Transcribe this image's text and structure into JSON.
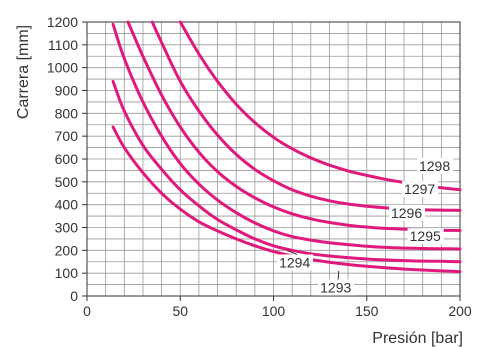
{
  "chart_data": {
    "type": "line",
    "title": "",
    "xlabel": "Presión [bar]",
    "ylabel": "Carrera [mm]",
    "xlim": [
      0,
      200
    ],
    "ylim": [
      0,
      1200
    ],
    "x_ticks": [
      0,
      50,
      100,
      150,
      200
    ],
    "y_ticks": [
      0,
      100,
      200,
      300,
      400,
      500,
      600,
      700,
      800,
      900,
      1000,
      1100,
      1200
    ],
    "grid": true,
    "line_color": "#e0197d",
    "series": [
      {
        "name": "1293",
        "label_at": [
          125,
          15
        ],
        "pointer_to": [
          135,
          110
        ],
        "points": [
          [
            14,
            740
          ],
          [
            20,
            650
          ],
          [
            30,
            540
          ],
          [
            40,
            450
          ],
          [
            50,
            380
          ],
          [
            60,
            325
          ],
          [
            70,
            285
          ],
          [
            80,
            250
          ],
          [
            90,
            220
          ],
          [
            100,
            195
          ],
          [
            110,
            175
          ],
          [
            120,
            160
          ],
          [
            130,
            148
          ],
          [
            140,
            138
          ],
          [
            150,
            130
          ],
          [
            160,
            124
          ],
          [
            170,
            118
          ],
          [
            180,
            114
          ],
          [
            190,
            110
          ],
          [
            200,
            107
          ]
        ]
      },
      {
        "name": "1294",
        "label_at": [
          103,
          125
        ],
        "pointer_to": [
          107,
          200
        ],
        "points": [
          [
            14,
            940
          ],
          [
            20,
            810
          ],
          [
            30,
            660
          ],
          [
            40,
            555
          ],
          [
            50,
            465
          ],
          [
            60,
            395
          ],
          [
            70,
            335
          ],
          [
            80,
            290
          ],
          [
            90,
            250
          ],
          [
            100,
            220
          ],
          [
            110,
            200
          ],
          [
            120,
            185
          ],
          [
            130,
            175
          ],
          [
            140,
            168
          ],
          [
            150,
            162
          ],
          [
            160,
            158
          ],
          [
            170,
            155
          ],
          [
            180,
            153
          ],
          [
            190,
            152
          ],
          [
            200,
            150
          ]
        ]
      },
      {
        "name": "1295",
        "label_at": [
          173,
          240
        ],
        "pointer_to": null,
        "points": [
          [
            14,
            1190
          ],
          [
            20,
            1040
          ],
          [
            30,
            850
          ],
          [
            40,
            700
          ],
          [
            50,
            580
          ],
          [
            60,
            490
          ],
          [
            70,
            420
          ],
          [
            80,
            365
          ],
          [
            90,
            320
          ],
          [
            100,
            285
          ],
          [
            110,
            260
          ],
          [
            120,
            245
          ],
          [
            130,
            233
          ],
          [
            140,
            225
          ],
          [
            150,
            218
          ],
          [
            160,
            213
          ],
          [
            170,
            210
          ],
          [
            180,
            208
          ],
          [
            190,
            207
          ],
          [
            200,
            206
          ]
        ]
      },
      {
        "name": "1296",
        "label_at": [
          163,
          342
        ],
        "pointer_to": null,
        "points": [
          [
            22,
            1200
          ],
          [
            30,
            1050
          ],
          [
            40,
            880
          ],
          [
            50,
            740
          ],
          [
            60,
            630
          ],
          [
            70,
            545
          ],
          [
            80,
            480
          ],
          [
            90,
            430
          ],
          [
            100,
            390
          ],
          [
            110,
            360
          ],
          [
            120,
            338
          ],
          [
            130,
            322
          ],
          [
            140,
            310
          ],
          [
            150,
            302
          ],
          [
            160,
            296
          ],
          [
            170,
            293
          ],
          [
            180,
            290
          ],
          [
            190,
            288
          ],
          [
            200,
            287
          ]
        ]
      },
      {
        "name": "1297",
        "label_at": [
          170,
          446
        ],
        "pointer_to": null,
        "points": [
          [
            35,
            1200
          ],
          [
            40,
            1110
          ],
          [
            50,
            940
          ],
          [
            60,
            810
          ],
          [
            70,
            705
          ],
          [
            80,
            620
          ],
          [
            90,
            555
          ],
          [
            100,
            505
          ],
          [
            110,
            465
          ],
          [
            120,
            437
          ],
          [
            130,
            417
          ],
          [
            140,
            403
          ],
          [
            150,
            393
          ],
          [
            160,
            386
          ],
          [
            170,
            381
          ],
          [
            180,
            378
          ],
          [
            190,
            376
          ],
          [
            200,
            375
          ]
        ]
      },
      {
        "name": "1298",
        "label_at": [
          178,
          548
        ],
        "pointer_to": null,
        "points": [
          [
            50,
            1200
          ],
          [
            60,
            1060
          ],
          [
            70,
            940
          ],
          [
            80,
            840
          ],
          [
            90,
            760
          ],
          [
            100,
            695
          ],
          [
            110,
            645
          ],
          [
            120,
            605
          ],
          [
            130,
            573
          ],
          [
            140,
            548
          ],
          [
            150,
            528
          ],
          [
            160,
            511
          ],
          [
            170,
            497
          ],
          [
            180,
            485
          ],
          [
            190,
            474
          ],
          [
            200,
            465
          ]
        ]
      }
    ]
  }
}
